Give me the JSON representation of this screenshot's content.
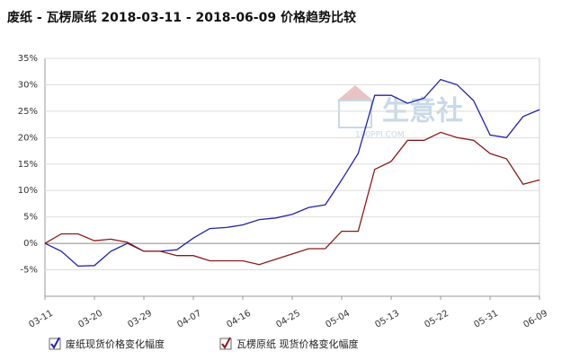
{
  "chart_data": {
    "type": "line",
    "title": "废纸 - 瓦楞原纸 2018-03-11 - 2018-06-09 价格趋势比较",
    "watermark": "生意社",
    "watermark_url": "100PPI.COM",
    "categories": [
      "03-11",
      null,
      null,
      "03-20",
      null,
      null,
      "03-29",
      null,
      null,
      "04-07",
      null,
      null,
      "04-16",
      null,
      null,
      "04-25",
      null,
      null,
      "05-04",
      null,
      null,
      "05-13",
      null,
      null,
      "05-22",
      null,
      null,
      "05-31",
      null,
      null,
      "06-09"
    ],
    "series": [
      {
        "name": "废纸现货价格变化幅度",
        "color": "#2222aa",
        "values": [
          0,
          -1.5,
          -4.3,
          -4.2,
          -1.5,
          0,
          -1.5,
          -1.5,
          -1.2,
          1,
          2.8,
          3,
          3.5,
          4.5,
          4.8,
          5.5,
          6.8,
          7.3,
          12,
          17,
          28,
          28,
          26.5,
          27.5,
          31,
          30,
          27,
          20.5,
          20,
          24,
          25.3
        ]
      },
      {
        "name": "瓦楞原纸 现货价格变化幅度",
        "color": "#8b1a1a",
        "values": [
          0,
          1.8,
          1.8,
          0.5,
          0.8,
          0.2,
          -1.5,
          -1.5,
          -2.3,
          -2.3,
          -3.3,
          -3.3,
          -3.3,
          -4,
          -3,
          -2,
          -1,
          -1,
          2.3,
          2.3,
          14,
          15.5,
          19.5,
          19.5,
          21,
          20,
          19.5,
          17,
          16,
          11.2,
          12
        ]
      }
    ],
    "ylim": [
      -10,
      35
    ],
    "yticks": [
      {
        "value": -5,
        "label": "-5%"
      },
      {
        "value": 0,
        "label": "0%"
      },
      {
        "value": 5,
        "label": "5%"
      },
      {
        "value": 10,
        "label": "10%"
      },
      {
        "value": 15,
        "label": "15%"
      },
      {
        "value": 20,
        "label": "20%"
      },
      {
        "value": 25,
        "label": "25%"
      },
      {
        "value": 30,
        "label": "30%"
      },
      {
        "value": 35,
        "label": "35%"
      }
    ],
    "grid": true
  }
}
